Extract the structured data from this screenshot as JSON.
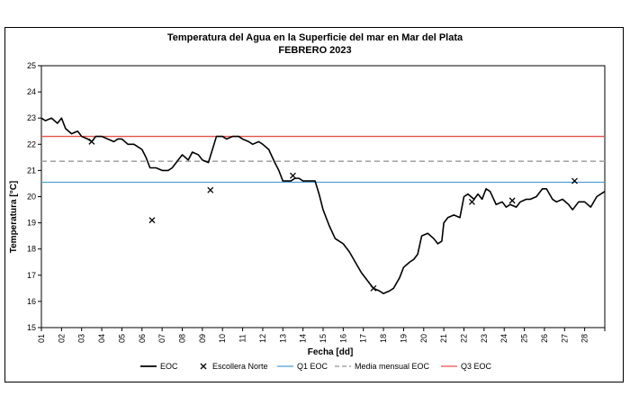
{
  "chart_data": {
    "type": "line",
    "title": "Temperatura del Agua en la Superficie del mar en Mar del Plata",
    "subtitle": "FEBRERO 2023",
    "xlabel": "Fecha [dd]",
    "ylabel": "Temperatura [°C]",
    "xlim": [
      1,
      29
    ],
    "ylim": [
      15,
      25
    ],
    "yticks": [
      "15",
      "16",
      "17",
      "18",
      "19",
      "20",
      "21",
      "22",
      "23",
      "24",
      "25"
    ],
    "xticks": [
      "01",
      "02",
      "03",
      "04",
      "05",
      "06",
      "07",
      "08",
      "09",
      "10",
      "11",
      "12",
      "13",
      "14",
      "15",
      "16",
      "17",
      "18",
      "19",
      "20",
      "21",
      "22",
      "23",
      "24",
      "25",
      "26",
      "27",
      "28"
    ],
    "grid": false,
    "legend_position": "bottom",
    "colors": {
      "eoc": "#000000",
      "q1": "#4f9fd8",
      "media": "#a6a6a6",
      "q3": "#e8514a"
    },
    "reference_lines": [
      {
        "name": "Q1 EOC",
        "value": 20.55,
        "style": "solid",
        "color": "#4f9fd8"
      },
      {
        "name": "Media mensual EOC",
        "value": 21.35,
        "style": "dashed",
        "color": "#a6a6a6"
      },
      {
        "name": "Q3  EOC",
        "value": 22.3,
        "style": "solid",
        "color": "#e8514a"
      }
    ],
    "series": [
      {
        "name": "EOC",
        "type": "line",
        "x": [
          1.0,
          1.2,
          1.5,
          1.8,
          2.0,
          2.2,
          2.5,
          2.8,
          3.0,
          3.3,
          3.5,
          3.7,
          4.0,
          4.3,
          4.6,
          4.8,
          5.0,
          5.3,
          5.6,
          5.8,
          6.0,
          6.2,
          6.4,
          6.7,
          7.0,
          7.3,
          7.5,
          7.8,
          8.0,
          8.3,
          8.5,
          8.8,
          9.0,
          9.3,
          9.5,
          9.7,
          10.0,
          10.2,
          10.5,
          10.8,
          11.0,
          11.3,
          11.5,
          11.8,
          12.0,
          12.3,
          12.6,
          12.8,
          13.0,
          13.2,
          13.4,
          13.6,
          13.8,
          14.0,
          14.3,
          14.6,
          14.8,
          15.0,
          15.3,
          15.6,
          15.8,
          16.0,
          16.3,
          16.6,
          16.9,
          17.2,
          17.5,
          17.8,
          18.0,
          18.3,
          18.5,
          18.8,
          19.0,
          19.3,
          19.5,
          19.7,
          19.9,
          20.2,
          20.5,
          20.7,
          20.9,
          21.0,
          21.2,
          21.5,
          21.8,
          22.0,
          22.2,
          22.5,
          22.7,
          22.9,
          23.1,
          23.3,
          23.6,
          23.9,
          24.1,
          24.3,
          24.6,
          24.8,
          25.1,
          25.3,
          25.6,
          25.9,
          26.1,
          26.4,
          26.6,
          26.9,
          27.2,
          27.4,
          27.7,
          28.0,
          28.3,
          28.6,
          29.0
        ],
        "y": [
          23.0,
          22.9,
          23.0,
          22.8,
          23.0,
          22.6,
          22.4,
          22.5,
          22.3,
          22.2,
          22.1,
          22.3,
          22.3,
          22.2,
          22.1,
          22.2,
          22.2,
          22.0,
          22.0,
          21.9,
          21.8,
          21.5,
          21.1,
          21.1,
          21.0,
          21.0,
          21.1,
          21.4,
          21.6,
          21.4,
          21.7,
          21.6,
          21.4,
          21.3,
          21.8,
          22.3,
          22.3,
          22.2,
          22.3,
          22.3,
          22.2,
          22.1,
          22.0,
          22.1,
          22.0,
          21.8,
          21.3,
          21.0,
          20.6,
          20.6,
          20.6,
          20.7,
          20.7,
          20.6,
          20.6,
          20.6,
          20.1,
          19.5,
          18.9,
          18.4,
          18.3,
          18.2,
          17.9,
          17.5,
          17.1,
          16.8,
          16.5,
          16.4,
          16.3,
          16.4,
          16.5,
          16.9,
          17.3,
          17.5,
          17.6,
          17.8,
          18.5,
          18.6,
          18.4,
          18.2,
          18.3,
          19.0,
          19.2,
          19.3,
          19.2,
          20.0,
          20.1,
          19.9,
          20.1,
          19.9,
          20.3,
          20.2,
          19.7,
          19.8,
          19.6,
          19.7,
          19.6,
          19.8,
          19.9,
          19.9,
          20.0,
          20.3,
          20.3,
          19.9,
          19.8,
          19.9,
          19.7,
          19.5,
          19.8,
          19.8,
          19.6,
          20.0,
          20.2
        ]
      },
      {
        "name": "Escollera Norte",
        "type": "scatter",
        "x": [
          3.5,
          6.5,
          9.4,
          13.5,
          17.5,
          22.4,
          24.4,
          27.5
        ],
        "y": [
          22.1,
          19.1,
          20.25,
          20.8,
          16.5,
          19.8,
          19.85,
          20.6
        ]
      }
    ]
  }
}
